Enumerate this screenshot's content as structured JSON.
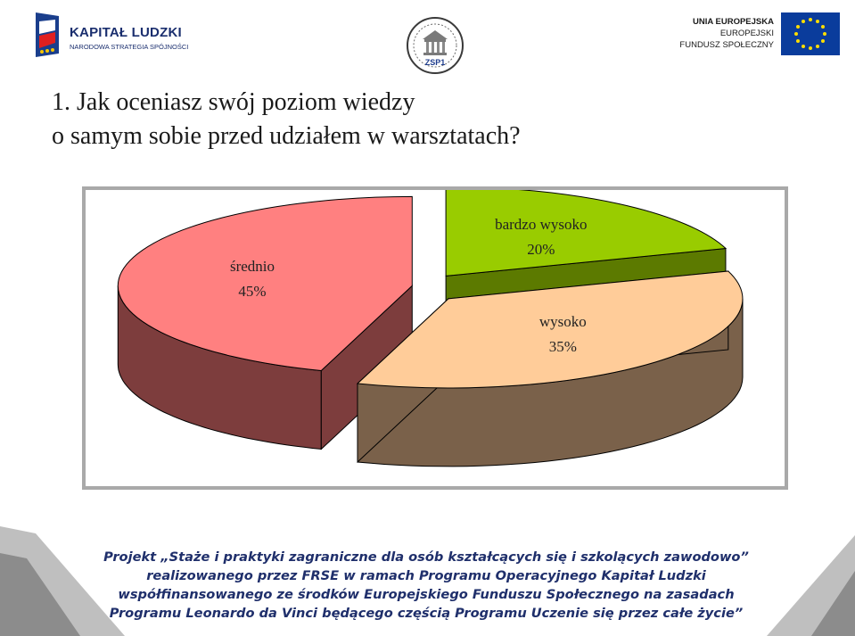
{
  "header": {
    "left_logo_title": "KAPITAŁ LUDZKI",
    "left_logo_subtitle": "NARODOWA STRATEGIA SPÓJNOŚCI",
    "middle_logo_text": "ZSP1",
    "right_logo_lines": [
      "UNIA EUROPEJSKA",
      "EUROPEJSKI",
      "FUNDUSZ SPOŁECZNY"
    ]
  },
  "slide": {
    "title_lines": [
      "1. Jak oceniasz swój poziom wiedzy",
      "o samym sobie przed udziałem w warsztatach?"
    ]
  },
  "chart_data": {
    "type": "pie",
    "style": "3d-exploded",
    "categories": [
      "bardzo wysoko",
      "wysoko",
      "średnio"
    ],
    "values": [
      20,
      35,
      45
    ],
    "value_labels": [
      "20%",
      "35%",
      "45%"
    ],
    "colors": {
      "bardzo wysoko": "#99cc00",
      "wysoko": "#ffcc99",
      "średnio": "#ff8080"
    },
    "side_colors": {
      "bardzo wysoko": "#5c7a00",
      "wysoko": "#7a614a",
      "średnio": "#7d3d3d"
    },
    "legend": "none"
  },
  "footer": {
    "lines": [
      "Projekt „Staże i praktyki zagraniczne dla osób kształcących się i szkolących zawodowo”",
      "realizowanego przez FRSE w ramach Programu Operacyjnego Kapitał Ludzki",
      "współfinansowanego ze środków Europejskiego Funduszu Społecznego na zasadach",
      "Programu Leonardo da Vinci będącego częścią Programu Uczenie się przez całe życie”"
    ]
  }
}
